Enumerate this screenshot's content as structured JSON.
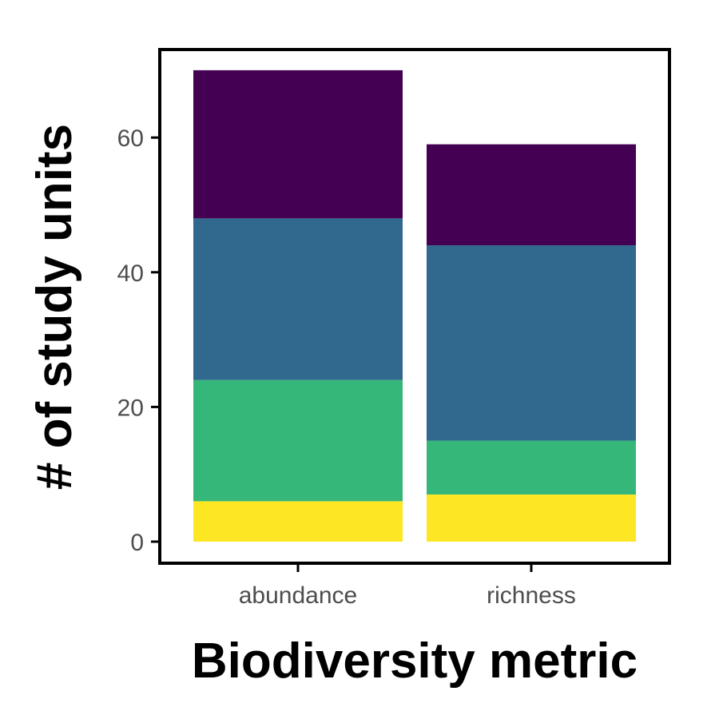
{
  "chart_data": {
    "type": "bar",
    "stacked": true,
    "title": "",
    "xlabel": "Biodiversity metric",
    "ylabel": "# of study units",
    "categories": [
      "abundance",
      "richness"
    ],
    "ylim": [
      0,
      70
    ],
    "yticks": [
      0,
      20,
      40,
      60
    ],
    "grid": false,
    "legend": "none",
    "series": [
      {
        "color": "#fde725",
        "values": [
          6,
          7
        ]
      },
      {
        "color": "#35b779",
        "values": [
          18,
          8
        ]
      },
      {
        "color": "#31688e",
        "values": [
          24,
          29
        ]
      },
      {
        "color": "#440154",
        "values": [
          22,
          15
        ]
      }
    ]
  }
}
